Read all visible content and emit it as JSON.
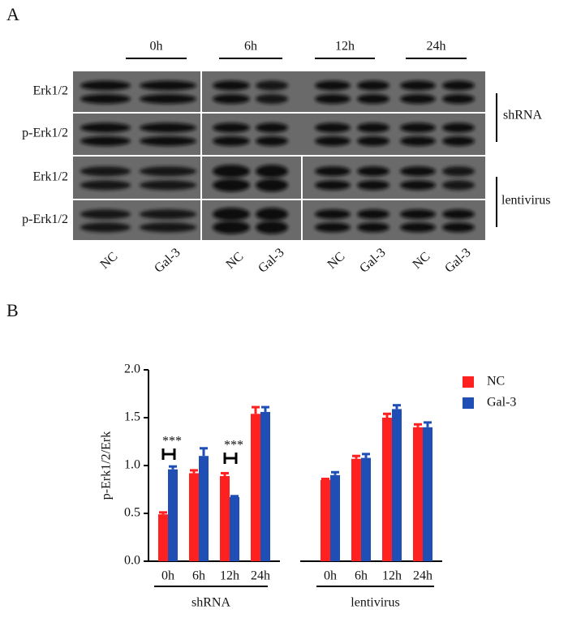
{
  "panel_labels": [
    "A",
    "B"
  ],
  "blot": {
    "timepoints": [
      "0h",
      "6h",
      "12h",
      "24h"
    ],
    "rows": [
      "Erk1/2",
      "p-Erk1/2",
      "Erk1/2",
      "p-Erk1/2"
    ],
    "groups": [
      "shRNA",
      "lentivirus"
    ],
    "lanes": [
      "NC",
      "Gal-3",
      "NC",
      "Gal-3",
      "NC",
      "Gal-3",
      "NC",
      "Gal-3"
    ]
  },
  "chart_data": {
    "type": "bar",
    "y_label": "p-Erk1/2/Erk",
    "categories": [
      "0h",
      "6h",
      "12h",
      "24h",
      "0h",
      "6h",
      "12h",
      "24h"
    ],
    "groups": [
      "shRNA",
      "lentivirus"
    ],
    "series": [
      {
        "name": "NC",
        "color": "#ff2020",
        "values": [
          0.49,
          0.92,
          0.89,
          1.54,
          0.85,
          1.07,
          1.5,
          1.4
        ],
        "errors": [
          0.02,
          0.03,
          0.03,
          0.07,
          0.01,
          0.03,
          0.04,
          0.03
        ]
      },
      {
        "name": "Gal-3",
        "color": "#1f4fb4",
        "values": [
          0.96,
          1.1,
          0.67,
          1.56,
          0.9,
          1.08,
          1.59,
          1.4
        ],
        "errors": [
          0.03,
          0.08,
          0.01,
          0.05,
          0.03,
          0.04,
          0.04,
          0.05
        ]
      }
    ],
    "ylim": [
      0,
      2
    ],
    "yticks": [
      {
        "value": 0,
        "label": "0.0"
      },
      {
        "value": 0.5,
        "label": "0.5"
      },
      {
        "value": 1,
        "label": "1.0"
      },
      {
        "value": 1.5,
        "label": "1.5"
      },
      {
        "value": 2,
        "label": "2.0"
      }
    ],
    "annotations": [
      "***",
      "***"
    ]
  }
}
